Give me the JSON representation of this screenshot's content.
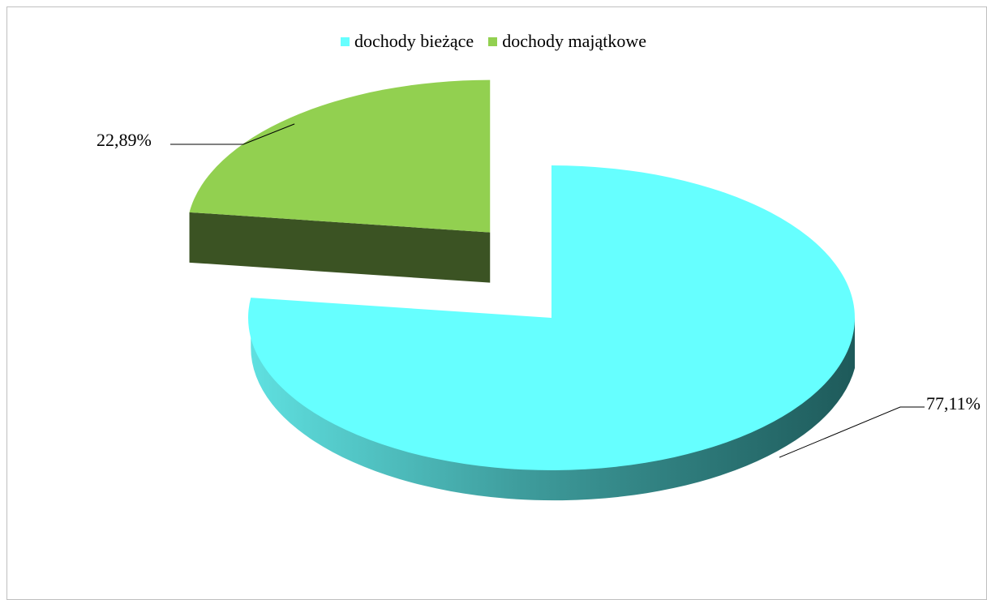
{
  "chart_data": {
    "type": "pie",
    "style": "3d-exploded",
    "title": "",
    "legend_position": "top",
    "series": [
      {
        "name": "dochody bieżące",
        "value": 77.11,
        "label": "77,11%",
        "color": "#66FFFF",
        "side_color": "#2A6E6E"
      },
      {
        "name": "dochody majątkowe",
        "value": 22.89,
        "label": "22,89%",
        "color": "#92D050",
        "side_color": "#3B5323"
      }
    ]
  }
}
